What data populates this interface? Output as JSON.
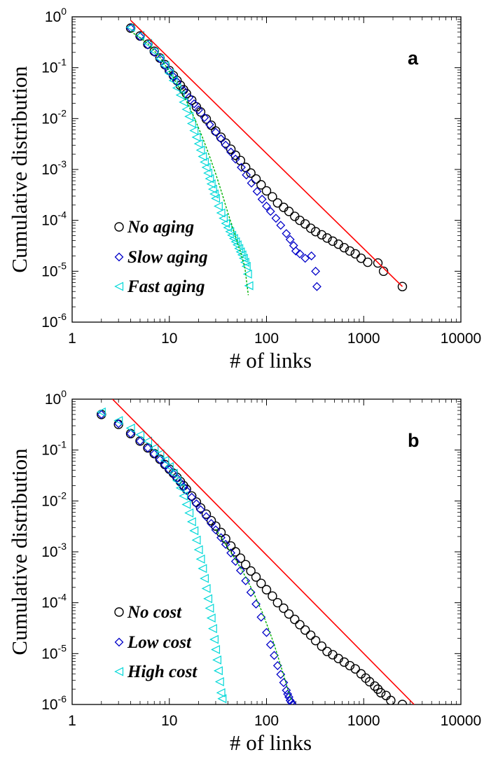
{
  "figure": {
    "panels": [
      {
        "panel_label": "a",
        "xlabel": "# of links",
        "ylabel": "Cumulative distribution",
        "legend": [
          "No aging",
          "Slow aging",
          "Fast aging"
        ]
      },
      {
        "panel_label": "b",
        "xlabel": "# of links",
        "ylabel": "Cumulative distribution",
        "legend": [
          "No cost",
          "Low cost",
          "High cost"
        ]
      }
    ]
  },
  "chart_data": [
    {
      "type": "scatter",
      "title": "",
      "panel_label": "a",
      "xlabel": "# of links",
      "ylabel": "Cumulative distribution",
      "xscale": "log",
      "yscale": "log",
      "xlim": [
        1,
        10000
      ],
      "ylim": [
        1e-06,
        1
      ],
      "x_ticks": [
        "1",
        "10",
        "100",
        "1000",
        "10000"
      ],
      "y_ticks": [
        "10^-6",
        "10^-5",
        "10^-4",
        "10^-3",
        "10^-2",
        "10^-1",
        "10^0"
      ],
      "legend_position": "bottom-left",
      "colors": {
        "no": "#000000",
        "slow": "#0000c8",
        "fast": "#00d8d8",
        "fit": "#ff0000",
        "fit_fast": "#00b000"
      },
      "series": [
        {
          "name": "No aging",
          "marker": "circle",
          "x": [
            4,
            5,
            6,
            7,
            8,
            9,
            10,
            11,
            12,
            13,
            14,
            15,
            17,
            19,
            21,
            24,
            27,
            30,
            34,
            38,
            43,
            48,
            54,
            61,
            69,
            78,
            88,
            100,
            115,
            130,
            150,
            170,
            195,
            220,
            250,
            285,
            320,
            370,
            420,
            480,
            550,
            630,
            720,
            820,
            940,
            1100,
            1400,
            1600,
            2500
          ],
          "y": [
            0.6,
            0.42,
            0.29,
            0.21,
            0.155,
            0.115,
            0.088,
            0.07,
            0.056,
            0.045,
            0.037,
            0.031,
            0.023,
            0.017,
            0.0135,
            0.0098,
            0.0074,
            0.0057,
            0.0043,
            0.0033,
            0.0025,
            0.0019,
            0.0015,
            0.0011,
            0.00085,
            0.00065,
            0.0005,
            0.00038,
            0.00029,
            0.00022,
            0.00018,
            0.00015,
            0.00012,
            0.0001,
            8.5e-05,
            7e-05,
            6e-05,
            5.2e-05,
            4.5e-05,
            3.9e-05,
            3.4e-05,
            2.9e-05,
            2.5e-05,
            2.2e-05,
            1.8e-05,
            1.5e-05,
            1.45e-05,
            1e-05,
            5e-06
          ]
        },
        {
          "name": "Slow aging",
          "marker": "diamond",
          "x": [
            4,
            5,
            6,
            7,
            8,
            9,
            10,
            11,
            12,
            14,
            16,
            18,
            20,
            23,
            26,
            30,
            34,
            38,
            43,
            48,
            55,
            62,
            70,
            80,
            90,
            100,
            110,
            125,
            140,
            160,
            175,
            190,
            200,
            220,
            250,
            290,
            320,
            330
          ],
          "y": [
            0.6,
            0.41,
            0.28,
            0.2,
            0.15,
            0.11,
            0.085,
            0.067,
            0.053,
            0.036,
            0.026,
            0.0195,
            0.0148,
            0.0105,
            0.0076,
            0.0054,
            0.004,
            0.003,
            0.0022,
            0.0016,
            0.0011,
            0.00078,
            0.00054,
            0.00037,
            0.00026,
            0.00019,
            0.00015,
            0.00011,
            8e-05,
            5.5e-05,
            4.2e-05,
            3.2e-05,
            2.5e-05,
            2.2e-05,
            1.8e-05,
            2e-05,
            1e-05,
            5e-06
          ]
        },
        {
          "name": "Fast aging",
          "marker": "triangle-left",
          "x": [
            4,
            5,
            6,
            7,
            8,
            9,
            10,
            11,
            12,
            13,
            14,
            15,
            16,
            17,
            18,
            19,
            20,
            21,
            22,
            23,
            24,
            25,
            26,
            27,
            28,
            29,
            30,
            32,
            34,
            36,
            38,
            40,
            42,
            44,
            46,
            48,
            50,
            52,
            54,
            56,
            58,
            60,
            62,
            64,
            66
          ],
          "y": [
            0.62,
            0.43,
            0.3,
            0.21,
            0.15,
            0.11,
            0.078,
            0.056,
            0.04,
            0.029,
            0.021,
            0.0152,
            0.011,
            0.008,
            0.0058,
            0.0043,
            0.0032,
            0.0024,
            0.0018,
            0.0014,
            0.0011,
            0.00085,
            0.00066,
            0.00052,
            0.00041,
            0.00033,
            0.00027,
            0.00019,
            0.00014,
            0.00011,
            8.7e-05,
            7.2e-05,
            6e-05,
            5.1e-05,
            4.4e-05,
            3.8e-05,
            3.3e-05,
            2.8e-05,
            2.4e-05,
            2.1e-05,
            1.8e-05,
            1.5e-05,
            1.25e-05,
            8.8e-06,
            5.2e-06
          ]
        }
      ],
      "fit_lines": [
        {
          "color": "#ff0000",
          "style": "solid",
          "x": [
            4,
            2500
          ],
          "y": [
            0.85,
            5e-06
          ]
        },
        {
          "color": "#00b000",
          "style": "dotted",
          "x": [
            4,
            6,
            8,
            10,
            12,
            15,
            18,
            22,
            26,
            30,
            35,
            40,
            45,
            50,
            55,
            60,
            65
          ],
          "y": [
            0.52,
            0.3,
            0.16,
            0.085,
            0.048,
            0.022,
            0.0105,
            0.0042,
            0.0018,
            0.00082,
            0.00033,
            0.00014,
            7e-05,
            3.8e-05,
            2.1e-05,
            1.15e-05,
            3.4e-06
          ]
        }
      ]
    },
    {
      "type": "scatter",
      "title": "",
      "panel_label": "b",
      "xlabel": "# of links",
      "ylabel": "Cumulative distribution",
      "xscale": "log",
      "yscale": "log",
      "xlim": [
        1,
        10000
      ],
      "ylim": [
        1e-06,
        1
      ],
      "x_ticks": [
        "1",
        "10",
        "100",
        "1000",
        "10000"
      ],
      "y_ticks": [
        "10^-6",
        "10^-5",
        "10^-4",
        "10^-3",
        "10^-2",
        "10^-1",
        "10^0"
      ],
      "legend_position": "bottom-left",
      "colors": {
        "no": "#000000",
        "low": "#0000c8",
        "high": "#00d8d8",
        "fit": "#ff0000",
        "fit_low": "#00b000"
      },
      "series": [
        {
          "name": "No cost",
          "marker": "circle",
          "x": [
            2,
            3,
            4,
            5,
            6,
            7,
            8,
            9,
            10,
            11,
            12,
            13,
            14,
            15,
            17,
            19,
            21,
            24,
            27,
            30,
            34,
            38,
            43,
            48,
            54,
            61,
            69,
            78,
            88,
            100,
            115,
            130,
            150,
            170,
            195,
            220,
            250,
            285,
            320,
            370,
            420,
            480,
            550,
            630,
            720,
            820,
            940,
            1050,
            1150,
            1300,
            1400,
            1500,
            1700,
            1900,
            2500
          ],
          "y": [
            0.5,
            0.32,
            0.21,
            0.15,
            0.11,
            0.085,
            0.066,
            0.052,
            0.042,
            0.035,
            0.029,
            0.024,
            0.02,
            0.017,
            0.0125,
            0.0095,
            0.0073,
            0.0055,
            0.0041,
            0.0032,
            0.0024,
            0.0018,
            0.0013,
            0.001,
            0.00075,
            0.00056,
            0.00042,
            0.00032,
            0.00024,
            0.00018,
            0.000135,
            0.0001,
            7.8e-05,
            6e-05,
            4.7e-05,
            3.7e-05,
            2.9e-05,
            2.3e-05,
            1.8e-05,
            1.4e-05,
            1.1e-05,
            9.5e-06,
            8e-06,
            6.8e-06,
            5.8e-06,
            5e-06,
            4e-06,
            3.3e-06,
            2.8e-06,
            2.3e-06,
            2e-06,
            1.7e-06,
            1.5e-06,
            1.2e-06,
            1e-06
          ]
        },
        {
          "name": "Low cost",
          "marker": "diamond",
          "x": [
            2,
            3,
            4,
            5,
            6,
            7,
            8,
            9,
            10,
            11,
            12,
            13,
            14,
            15,
            17,
            19,
            21,
            24,
            27,
            30,
            34,
            38,
            43,
            48,
            54,
            61,
            69,
            78,
            88,
            100,
            110,
            120,
            130,
            140,
            150,
            160,
            165,
            170,
            175,
            180,
            185
          ],
          "y": [
            0.5,
            0.33,
            0.21,
            0.15,
            0.11,
            0.084,
            0.065,
            0.051,
            0.041,
            0.034,
            0.028,
            0.023,
            0.019,
            0.016,
            0.0118,
            0.0088,
            0.0067,
            0.0049,
            0.0036,
            0.0027,
            0.0019,
            0.0014,
            0.00095,
            0.00065,
            0.00043,
            0.00027,
            0.00016,
            9.4e-05,
            5.2e-05,
            2.6e-05,
            1.5e-05,
            9.2e-06,
            5.8e-06,
            3.9e-06,
            2.7e-06,
            1.9e-06,
            1.6e-06,
            1.4e-06,
            1.2e-06,
            1.1e-06,
            1e-06
          ]
        },
        {
          "name": "High cost",
          "marker": "triangle-left",
          "x": [
            2,
            3,
            4,
            5,
            6,
            7,
            8,
            9,
            10,
            11,
            12,
            13,
            14,
            15,
            16,
            17,
            18,
            19,
            20,
            21,
            22,
            23,
            24,
            25,
            26,
            27,
            28,
            29,
            30,
            31,
            32,
            33,
            34,
            35
          ],
          "y": [
            0.56,
            0.38,
            0.27,
            0.2,
            0.15,
            0.11,
            0.084,
            0.063,
            0.047,
            0.035,
            0.025,
            0.018,
            0.0125,
            0.0085,
            0.0058,
            0.0039,
            0.0026,
            0.0017,
            0.0011,
            0.00072,
            0.00047,
            0.0003,
            0.00019,
            0.00012,
            7.8e-05,
            5e-05,
            3.1e-05,
            1.9e-05,
            1.2e-05,
            7.5e-06,
            4.6e-06,
            2.8e-06,
            1.7e-06,
            1.3e-06
          ]
        }
      ],
      "fit_lines": [
        {
          "color": "#ff0000",
          "style": "solid",
          "x": [
            2.6,
            3300
          ],
          "y": [
            1.0,
            1e-06
          ]
        },
        {
          "color": "#00b000",
          "style": "dotted",
          "x": [
            30,
            40,
            50,
            60,
            70,
            80,
            90,
            100,
            110,
            120,
            130,
            140,
            150,
            160,
            170,
            180
          ],
          "y": [
            0.0028,
            0.0012,
            0.00062,
            0.00034,
            0.00019,
            0.00011,
            6.6e-05,
            3.9e-05,
            2.4e-05,
            1.5e-05,
            9.2e-06,
            5.8e-06,
            3.8e-06,
            2.5e-06,
            1.7e-06,
            1.2e-06
          ]
        }
      ]
    }
  ]
}
